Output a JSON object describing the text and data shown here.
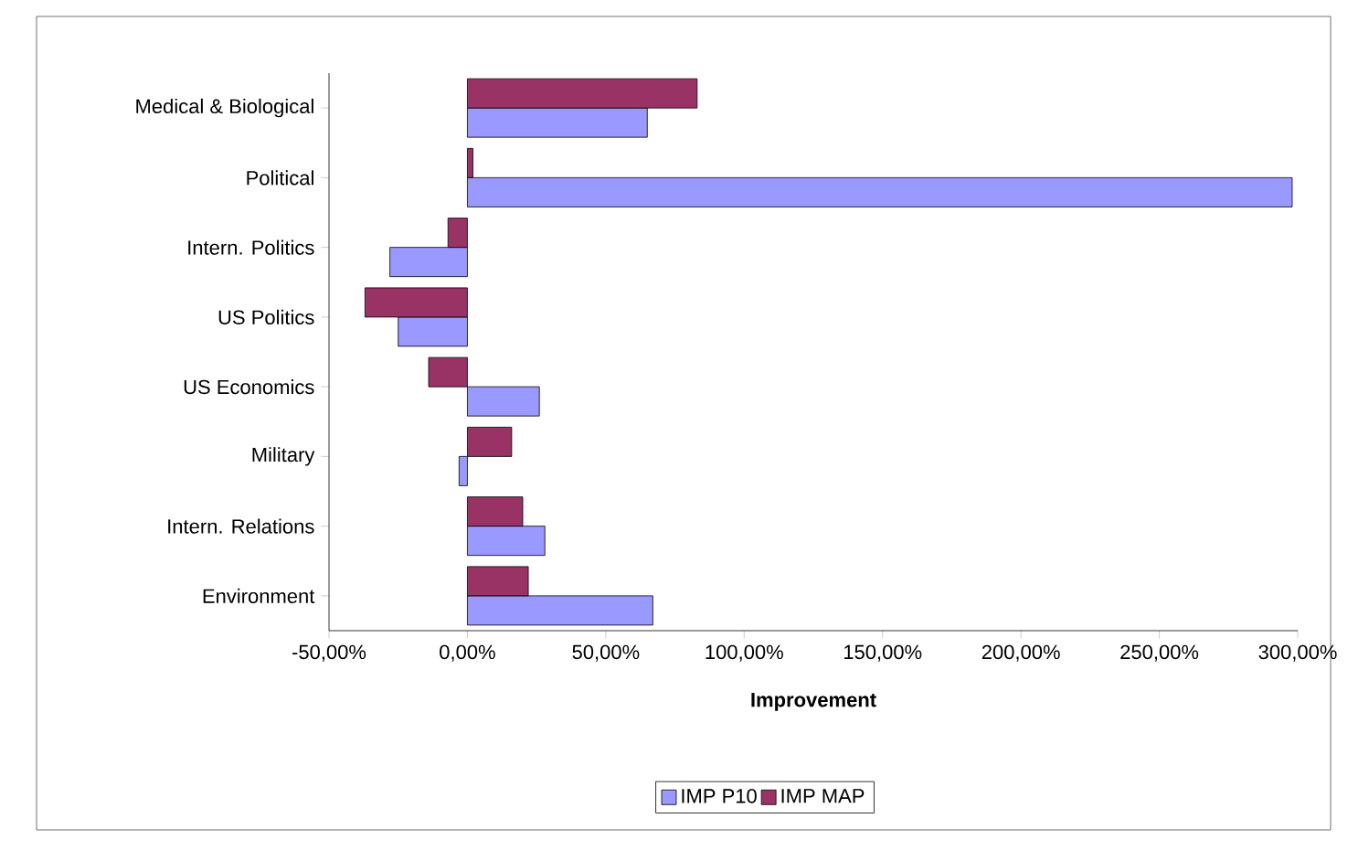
{
  "chart_data": {
    "type": "bar",
    "orientation": "horizontal",
    "xlabel": "**Improvement**",
    "categories": [
      "Medical & Biological",
      "Political",
      "Intern. Politics",
      "US Politics",
      "US Economics",
      "Military",
      "Intern. Relations",
      "Environment"
    ],
    "series": [
      {
        "name": "IMP P10",
        "color": "#9999ff",
        "values": [
          65,
          298,
          -28,
          -25,
          26,
          -3,
          28,
          67
        ]
      },
      {
        "name": "IMP MAP",
        "color": "#993366",
        "values": [
          83,
          2,
          -7,
          -37,
          -14,
          16,
          20,
          22
        ]
      }
    ],
    "xlim": [
      -50,
      300
    ],
    "xticks": [
      {
        "value": -50,
        "label": "-50,00%"
      },
      {
        "value": 0,
        "label": "0,00%"
      },
      {
        "value": 50,
        "label": "50,00%"
      },
      {
        "value": 100,
        "label": "100,00%"
      },
      {
        "value": 150,
        "label": "150,00%"
      },
      {
        "value": 200,
        "label": "200,00%"
      },
      {
        "value": 250,
        "label": "250,00%"
      },
      {
        "value": 300,
        "label": "300,00%"
      }
    ],
    "legend": "bottom",
    "grid": false
  }
}
